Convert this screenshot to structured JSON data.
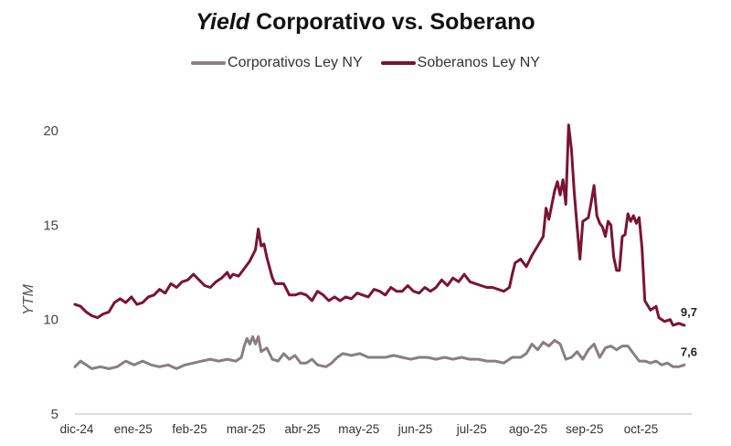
{
  "chart_data": {
    "type": "line",
    "title_italic": "Yield",
    "title_rest": " Corporativo vs. Soberano",
    "ylabel": "YTM",
    "xlabel": "",
    "ylim": [
      5,
      21
    ],
    "yticks": [
      5,
      10,
      15,
      20
    ],
    "x_month_labels": [
      "dic-24",
      "ene-25",
      "feb-25",
      "mar-25",
      "abr-25",
      "may-25",
      "jun-25",
      "jul-25",
      "ago-25",
      "sep-25",
      "oct-25"
    ],
    "x_range": [
      0,
      10.85
    ],
    "grid": false,
    "legend_position": "top-center",
    "series": [
      {
        "name": "Corporativos Ley NY",
        "color": "#8a7e80",
        "end_label": "7,6",
        "points": [
          [
            0.0,
            7.5
          ],
          [
            0.1,
            7.8
          ],
          [
            0.2,
            7.6
          ],
          [
            0.3,
            7.4
          ],
          [
            0.45,
            7.5
          ],
          [
            0.6,
            7.4
          ],
          [
            0.75,
            7.5
          ],
          [
            0.9,
            7.8
          ],
          [
            1.05,
            7.6
          ],
          [
            1.2,
            7.8
          ],
          [
            1.35,
            7.6
          ],
          [
            1.5,
            7.5
          ],
          [
            1.65,
            7.6
          ],
          [
            1.8,
            7.4
          ],
          [
            1.95,
            7.6
          ],
          [
            2.1,
            7.7
          ],
          [
            2.25,
            7.8
          ],
          [
            2.4,
            7.9
          ],
          [
            2.55,
            7.8
          ],
          [
            2.7,
            7.9
          ],
          [
            2.85,
            7.8
          ],
          [
            2.95,
            8.0
          ],
          [
            3.0,
            8.6
          ],
          [
            3.05,
            9.0
          ],
          [
            3.1,
            8.7
          ],
          [
            3.15,
            9.1
          ],
          [
            3.2,
            8.7
          ],
          [
            3.25,
            9.1
          ],
          [
            3.3,
            8.3
          ],
          [
            3.4,
            8.5
          ],
          [
            3.5,
            7.9
          ],
          [
            3.6,
            7.8
          ],
          [
            3.7,
            8.2
          ],
          [
            3.8,
            7.9
          ],
          [
            3.9,
            8.1
          ],
          [
            4.0,
            7.7
          ],
          [
            4.1,
            7.7
          ],
          [
            4.2,
            7.9
          ],
          [
            4.3,
            7.6
          ],
          [
            4.45,
            7.5
          ],
          [
            4.55,
            7.7
          ],
          [
            4.65,
            8.0
          ],
          [
            4.75,
            8.2
          ],
          [
            4.9,
            8.1
          ],
          [
            5.05,
            8.2
          ],
          [
            5.2,
            8.0
          ],
          [
            5.35,
            8.0
          ],
          [
            5.5,
            8.0
          ],
          [
            5.65,
            8.1
          ],
          [
            5.8,
            8.0
          ],
          [
            5.95,
            7.9
          ],
          [
            6.1,
            8.0
          ],
          [
            6.25,
            8.0
          ],
          [
            6.4,
            7.9
          ],
          [
            6.55,
            8.0
          ],
          [
            6.7,
            7.9
          ],
          [
            6.85,
            8.0
          ],
          [
            7.0,
            7.9
          ],
          [
            7.15,
            7.9
          ],
          [
            7.3,
            7.8
          ],
          [
            7.45,
            7.8
          ],
          [
            7.6,
            7.7
          ],
          [
            7.75,
            8.0
          ],
          [
            7.9,
            8.0
          ],
          [
            8.0,
            8.2
          ],
          [
            8.1,
            8.7
          ],
          [
            8.2,
            8.4
          ],
          [
            8.3,
            8.8
          ],
          [
            8.4,
            8.6
          ],
          [
            8.5,
            8.9
          ],
          [
            8.6,
            8.7
          ],
          [
            8.7,
            7.9
          ],
          [
            8.8,
            8.0
          ],
          [
            8.9,
            8.3
          ],
          [
            9.0,
            7.9
          ],
          [
            9.1,
            8.4
          ],
          [
            9.2,
            8.7
          ],
          [
            9.3,
            8.0
          ],
          [
            9.4,
            8.5
          ],
          [
            9.5,
            8.6
          ],
          [
            9.6,
            8.4
          ],
          [
            9.7,
            8.6
          ],
          [
            9.8,
            8.6
          ],
          [
            9.9,
            8.2
          ],
          [
            10.0,
            7.8
          ],
          [
            10.1,
            7.8
          ],
          [
            10.2,
            7.7
          ],
          [
            10.3,
            7.8
          ],
          [
            10.4,
            7.6
          ],
          [
            10.5,
            7.7
          ],
          [
            10.6,
            7.5
          ],
          [
            10.7,
            7.5
          ],
          [
            10.8,
            7.6
          ]
        ]
      },
      {
        "name": "Soberanos Ley NY",
        "color": "#7a1432",
        "end_label": "9,7",
        "points": [
          [
            0.0,
            10.8
          ],
          [
            0.1,
            10.7
          ],
          [
            0.2,
            10.4
          ],
          [
            0.3,
            10.2
          ],
          [
            0.4,
            10.1
          ],
          [
            0.5,
            10.3
          ],
          [
            0.6,
            10.4
          ],
          [
            0.7,
            10.9
          ],
          [
            0.8,
            11.1
          ],
          [
            0.9,
            10.9
          ],
          [
            1.0,
            11.2
          ],
          [
            1.1,
            10.8
          ],
          [
            1.2,
            10.9
          ],
          [
            1.3,
            11.2
          ],
          [
            1.4,
            11.3
          ],
          [
            1.5,
            11.6
          ],
          [
            1.6,
            11.4
          ],
          [
            1.7,
            11.9
          ],
          [
            1.8,
            11.7
          ],
          [
            1.9,
            12.0
          ],
          [
            2.0,
            12.1
          ],
          [
            2.1,
            12.4
          ],
          [
            2.2,
            12.1
          ],
          [
            2.3,
            11.8
          ],
          [
            2.4,
            11.7
          ],
          [
            2.5,
            12.0
          ],
          [
            2.6,
            12.2
          ],
          [
            2.7,
            12.5
          ],
          [
            2.75,
            12.2
          ],
          [
            2.8,
            12.4
          ],
          [
            2.9,
            12.3
          ],
          [
            3.0,
            12.7
          ],
          [
            3.1,
            13.1
          ],
          [
            3.2,
            13.7
          ],
          [
            3.25,
            14.8
          ],
          [
            3.3,
            13.9
          ],
          [
            3.35,
            14.0
          ],
          [
            3.4,
            13.3
          ],
          [
            3.5,
            12.2
          ],
          [
            3.55,
            11.9
          ],
          [
            3.7,
            11.9
          ],
          [
            3.8,
            11.3
          ],
          [
            3.9,
            11.3
          ],
          [
            4.0,
            11.4
          ],
          [
            4.1,
            11.3
          ],
          [
            4.2,
            11.0
          ],
          [
            4.3,
            11.5
          ],
          [
            4.4,
            11.3
          ],
          [
            4.5,
            11.0
          ],
          [
            4.6,
            11.2
          ],
          [
            4.7,
            11.0
          ],
          [
            4.8,
            11.2
          ],
          [
            4.9,
            11.1
          ],
          [
            5.0,
            11.4
          ],
          [
            5.1,
            11.3
          ],
          [
            5.2,
            11.2
          ],
          [
            5.3,
            11.6
          ],
          [
            5.4,
            11.5
          ],
          [
            5.5,
            11.3
          ],
          [
            5.6,
            11.7
          ],
          [
            5.7,
            11.5
          ],
          [
            5.8,
            11.5
          ],
          [
            5.9,
            11.8
          ],
          [
            6.0,
            11.5
          ],
          [
            6.1,
            11.4
          ],
          [
            6.2,
            11.7
          ],
          [
            6.3,
            11.5
          ],
          [
            6.4,
            11.7
          ],
          [
            6.5,
            12.1
          ],
          [
            6.6,
            11.8
          ],
          [
            6.7,
            12.2
          ],
          [
            6.8,
            12.0
          ],
          [
            6.9,
            12.4
          ],
          [
            7.0,
            12.0
          ],
          [
            7.1,
            11.9
          ],
          [
            7.2,
            11.8
          ],
          [
            7.3,
            11.7
          ],
          [
            7.4,
            11.7
          ],
          [
            7.5,
            11.6
          ],
          [
            7.6,
            11.5
          ],
          [
            7.7,
            11.7
          ],
          [
            7.75,
            12.4
          ],
          [
            7.8,
            13.0
          ],
          [
            7.9,
            13.2
          ],
          [
            8.0,
            12.8
          ],
          [
            8.1,
            13.4
          ],
          [
            8.2,
            13.9
          ],
          [
            8.3,
            14.4
          ],
          [
            8.35,
            15.9
          ],
          [
            8.4,
            15.3
          ],
          [
            8.5,
            16.8
          ],
          [
            8.55,
            17.3
          ],
          [
            8.6,
            16.6
          ],
          [
            8.65,
            17.4
          ],
          [
            8.7,
            16.1
          ],
          [
            8.75,
            20.3
          ],
          [
            8.8,
            19.0
          ],
          [
            8.85,
            16.7
          ],
          [
            8.9,
            14.9
          ],
          [
            8.95,
            13.2
          ],
          [
            9.0,
            15.2
          ],
          [
            9.1,
            15.4
          ],
          [
            9.15,
            16.2
          ],
          [
            9.2,
            17.1
          ],
          [
            9.25,
            15.5
          ],
          [
            9.3,
            15.1
          ],
          [
            9.35,
            14.9
          ],
          [
            9.4,
            14.4
          ],
          [
            9.45,
            15.2
          ],
          [
            9.5,
            15.0
          ],
          [
            9.55,
            13.3
          ],
          [
            9.6,
            12.6
          ],
          [
            9.65,
            12.6
          ],
          [
            9.7,
            14.4
          ],
          [
            9.75,
            14.5
          ],
          [
            9.8,
            15.6
          ],
          [
            9.85,
            15.2
          ],
          [
            9.9,
            15.5
          ],
          [
            9.95,
            15.1
          ],
          [
            10.0,
            15.4
          ],
          [
            10.05,
            13.8
          ],
          [
            10.1,
            11.0
          ],
          [
            10.2,
            10.5
          ],
          [
            10.3,
            10.7
          ],
          [
            10.35,
            10.1
          ],
          [
            10.45,
            9.9
          ],
          [
            10.55,
            10.0
          ],
          [
            10.6,
            9.7
          ],
          [
            10.7,
            9.8
          ],
          [
            10.8,
            9.7
          ]
        ]
      }
    ]
  }
}
